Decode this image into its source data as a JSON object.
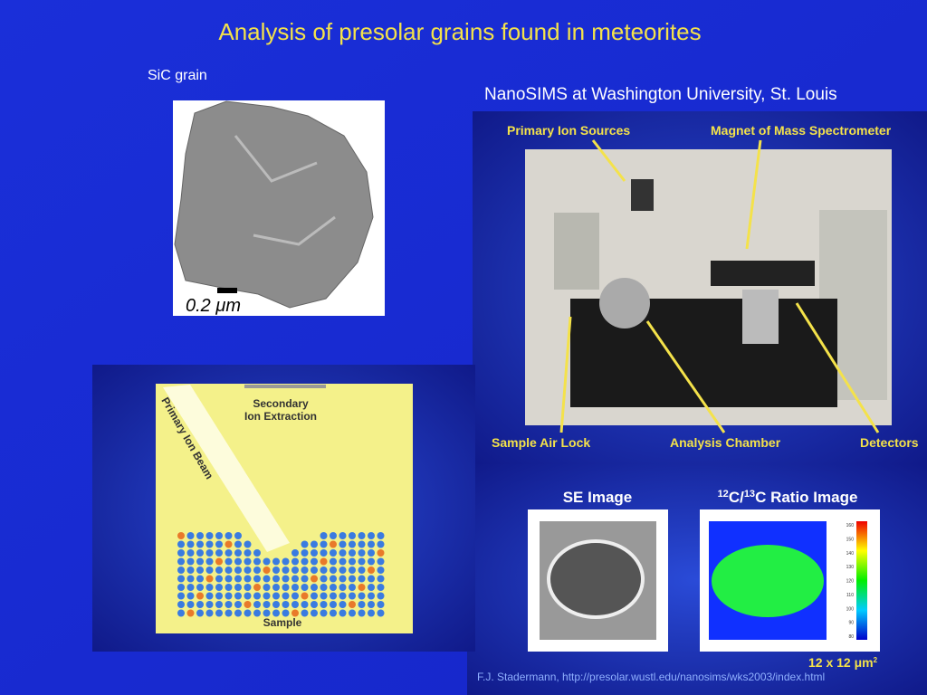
{
  "title": "Analysis of presolar grains found in meteorites",
  "sic": {
    "label": "SiC grain",
    "scale_label": "0.2 μm"
  },
  "nanosims": {
    "label": "NanoSIMS at Washington University, St. Louis",
    "photo_labels": {
      "ion_sources": "Primary Ion Sources",
      "magnet": "Magnet of Mass Spectrometer",
      "air_lock": "Sample Air Lock",
      "chamber": "Analysis Chamber",
      "detectors": "Detectors"
    }
  },
  "images": {
    "se_title": "SE Image",
    "ratio_title": {
      "mass1": "12",
      "el1": "C/",
      "mass2": "13",
      "el2": "C Ratio Image"
    },
    "scale_ticks": [
      160,
      150,
      140,
      130,
      120,
      110,
      100,
      90,
      80
    ],
    "size": {
      "text": "12 x 12 μm",
      "exp": "2"
    }
  },
  "diagram": {
    "secondary": "Secondary",
    "extraction": "Ion Extraction",
    "beam": "Primary Ion Beam",
    "sample": "Sample"
  },
  "credit": "F.J. Stadermann, http://presolar.wustl.edu/nanosims/wks2003/index.html"
}
